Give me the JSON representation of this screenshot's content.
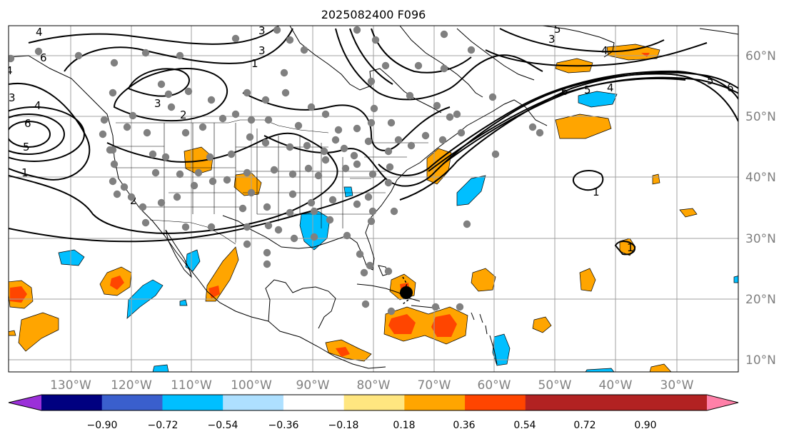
{
  "title": "2025082400 F096",
  "lon_labels": [
    "130°W",
    "120°W",
    "110°W",
    "100°W",
    "90°W",
    "80°W",
    "70°W",
    "60°W",
    "50°W",
    "40°W",
    "30°W"
  ],
  "lat_labels": [
    "60°N",
    "50°N",
    "40°N",
    "30°N",
    "20°N",
    "10°N"
  ],
  "colorbar": {
    "ticks": [
      "−0.90",
      "−0.72",
      "−0.54",
      "−0.36",
      "−0.18",
      "0.18",
      "0.36",
      "0.54",
      "0.72",
      "0.90"
    ],
    "colors": [
      "#9b30d9",
      "#000080",
      "#3a5fcd",
      "#00bfff",
      "#aee0ff",
      "#ffffff",
      "#ffe680",
      "#ffa500",
      "#ff4500",
      "#b22222",
      "#ff80a8"
    ]
  },
  "contour_labels": [
    "4",
    "3",
    "3",
    "4",
    "6",
    "5",
    "1",
    "3",
    "2",
    "3",
    "1",
    "2",
    "5",
    "6",
    "4",
    "3",
    "4",
    "6",
    "5",
    "4",
    "5",
    "6",
    "1",
    "1"
  ],
  "markers": {
    "station_color": "#808080",
    "storm_color": "#000000"
  }
}
